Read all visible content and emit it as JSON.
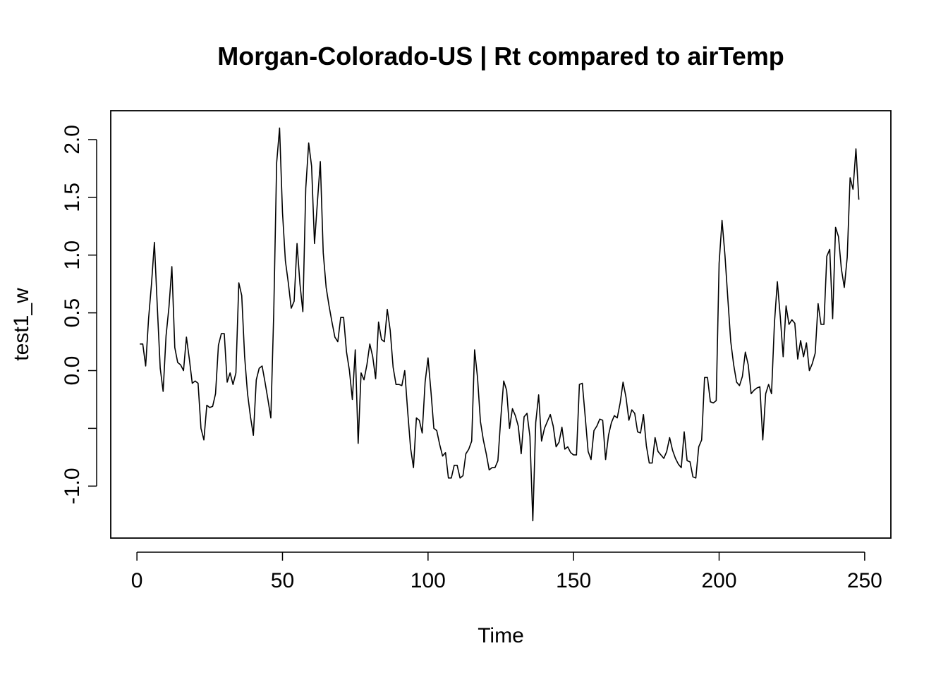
{
  "chart_data": {
    "type": "line",
    "title": "Morgan-Colorado-US | Rt compared to airTemp",
    "xlabel": "Time",
    "ylabel": "test1_w",
    "xlim": [
      -9,
      259
    ],
    "ylim": [
      -1.45,
      2.25
    ],
    "x_ticks": [
      0,
      50,
      100,
      150,
      200,
      250
    ],
    "x_tick_labels": [
      "0",
      "50",
      "100",
      "150",
      "200",
      "250"
    ],
    "y_ticks": [
      -1.0,
      -0.5,
      0.0,
      0.5,
      1.0,
      1.5,
      2.0
    ],
    "y_tick_labels": [
      "-1.0",
      "",
      "0.0",
      "0.5",
      "1.0",
      "1.5",
      "2.0"
    ],
    "grid": false,
    "series": [
      {
        "color": "#000000",
        "x": [
          1,
          2,
          3,
          4,
          5,
          6,
          7,
          8,
          9,
          10,
          11,
          12,
          13,
          14,
          15,
          16,
          17,
          18,
          19,
          20,
          21,
          22,
          23,
          24,
          25,
          26,
          27,
          28,
          29,
          30,
          31,
          32,
          33,
          34,
          35,
          36,
          37,
          38,
          39,
          40,
          41,
          42,
          43,
          44,
          45,
          46,
          47,
          48,
          49,
          50,
          51,
          52,
          53,
          54,
          55,
          56,
          57,
          58,
          59,
          60,
          61,
          62,
          63,
          64,
          65,
          66,
          67,
          68,
          69,
          70,
          71,
          72,
          73,
          74,
          75,
          76,
          77,
          78,
          79,
          80,
          81,
          82,
          83,
          84,
          85,
          86,
          87,
          88,
          89,
          90,
          91,
          92,
          93,
          94,
          95,
          96,
          97,
          98,
          99,
          100,
          101,
          102,
          103,
          104,
          105,
          106,
          107,
          108,
          109,
          110,
          111,
          112,
          113,
          114,
          115,
          116,
          117,
          118,
          119,
          120,
          121,
          122,
          123,
          124,
          125,
          126,
          127,
          128,
          129,
          130,
          131,
          132,
          133,
          134,
          135,
          136,
          137,
          138,
          139,
          140,
          141,
          142,
          143,
          144,
          145,
          146,
          147,
          148,
          149,
          150,
          151,
          152,
          153,
          154,
          155,
          156,
          157,
          158,
          159,
          160,
          161,
          162,
          163,
          164,
          165,
          166,
          167,
          168,
          169,
          170,
          171,
          172,
          173,
          174,
          175,
          176,
          177,
          178,
          179,
          180,
          181,
          182,
          183,
          184,
          185,
          186,
          187,
          188,
          189,
          190,
          191,
          192,
          193,
          194,
          195,
          196,
          197,
          198,
          199,
          200,
          201,
          202,
          203,
          204,
          205,
          206,
          207,
          208,
          209,
          210,
          211,
          212,
          213,
          214,
          215,
          216,
          217,
          218,
          219,
          220,
          221,
          222,
          223,
          224,
          225,
          226,
          227,
          228,
          229,
          230,
          231,
          232,
          233,
          234,
          235,
          236,
          237,
          238,
          239,
          240,
          241,
          242,
          243,
          244,
          245,
          246,
          247,
          248
        ],
        "y": [
          0.23,
          0.23,
          0.04,
          0.45,
          0.75,
          1.11,
          0.55,
          0.02,
          -0.18,
          0.3,
          0.55,
          0.9,
          0.2,
          0.07,
          0.05,
          0.0,
          0.29,
          0.1,
          -0.11,
          -0.09,
          -0.11,
          -0.5,
          -0.6,
          -0.3,
          -0.32,
          -0.31,
          -0.2,
          0.22,
          0.32,
          0.32,
          -0.1,
          -0.02,
          -0.12,
          -0.02,
          0.76,
          0.65,
          0.12,
          -0.2,
          -0.4,
          -0.56,
          -0.08,
          0.02,
          0.04,
          -0.1,
          -0.25,
          -0.41,
          0.5,
          1.8,
          2.1,
          1.37,
          0.95,
          0.76,
          0.54,
          0.6,
          1.1,
          0.75,
          0.51,
          1.58,
          1.97,
          1.77,
          1.1,
          1.46,
          1.81,
          1.02,
          0.72,
          0.56,
          0.42,
          0.29,
          0.25,
          0.46,
          0.46,
          0.16,
          0.0,
          -0.25,
          0.18,
          -0.63,
          -0.02,
          -0.08,
          0.05,
          0.23,
          0.12,
          -0.07,
          0.42,
          0.27,
          0.25,
          0.53,
          0.35,
          0.03,
          -0.12,
          -0.12,
          -0.13,
          0.0,
          -0.35,
          -0.67,
          -0.84,
          -0.41,
          -0.43,
          -0.54,
          -0.1,
          0.11,
          -0.18,
          -0.5,
          -0.52,
          -0.64,
          -0.74,
          -0.71,
          -0.93,
          -0.93,
          -0.82,
          -0.82,
          -0.93,
          -0.91,
          -0.72,
          -0.68,
          -0.61,
          0.18,
          -0.06,
          -0.44,
          -0.6,
          -0.72,
          -0.86,
          -0.84,
          -0.84,
          -0.78,
          -0.41,
          -0.09,
          -0.17,
          -0.5,
          -0.33,
          -0.39,
          -0.48,
          -0.72,
          -0.4,
          -0.37,
          -0.57,
          -1.3,
          -0.45,
          -0.21,
          -0.61,
          -0.5,
          -0.44,
          -0.38,
          -0.48,
          -0.66,
          -0.62,
          -0.49,
          -0.68,
          -0.66,
          -0.71,
          -0.73,
          -0.73,
          -0.12,
          -0.11,
          -0.4,
          -0.7,
          -0.77,
          -0.52,
          -0.48,
          -0.42,
          -0.43,
          -0.77,
          -0.56,
          -0.45,
          -0.39,
          -0.41,
          -0.28,
          -0.1,
          -0.23,
          -0.43,
          -0.34,
          -0.37,
          -0.53,
          -0.54,
          -0.38,
          -0.65,
          -0.8,
          -0.8,
          -0.58,
          -0.7,
          -0.73,
          -0.76,
          -0.7,
          -0.58,
          -0.69,
          -0.76,
          -0.81,
          -0.84,
          -0.53,
          -0.78,
          -0.79,
          -0.92,
          -0.93,
          -0.66,
          -0.6,
          -0.06,
          -0.06,
          -0.27,
          -0.28,
          -0.26,
          0.93,
          1.3,
          1.0,
          0.62,
          0.25,
          0.05,
          -0.1,
          -0.13,
          -0.05,
          0.16,
          0.05,
          -0.2,
          -0.17,
          -0.15,
          -0.14,
          -0.6,
          -0.2,
          -0.12,
          -0.2,
          0.41,
          0.77,
          0.47,
          0.12,
          0.56,
          0.4,
          0.44,
          0.41,
          0.1,
          0.26,
          0.12,
          0.24,
          0.0,
          0.06,
          0.15,
          0.58,
          0.4,
          0.4,
          0.99,
          1.05,
          0.45,
          1.24,
          1.16,
          0.88,
          0.72,
          0.98,
          1.67,
          1.57,
          1.92,
          1.48
        ]
      }
    ]
  }
}
